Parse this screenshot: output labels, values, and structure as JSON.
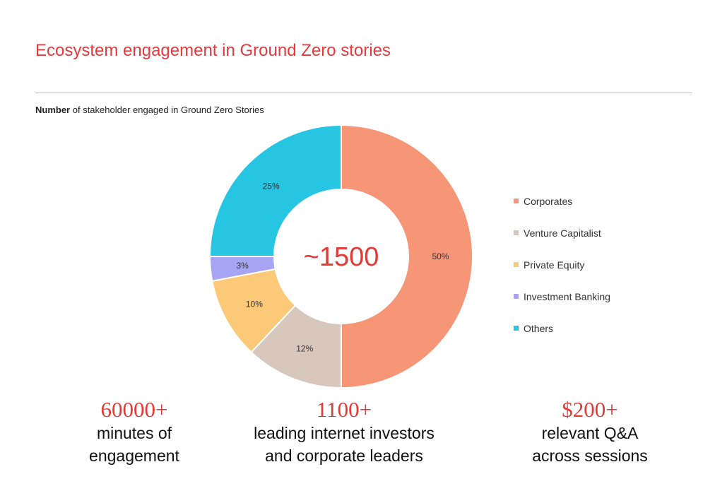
{
  "header": {
    "title": "Ecosystem engagement in Ground Zero stories",
    "subtitle_bold": "Number",
    "subtitle_rest": " of stakeholder engaged in Ground Zero Stories"
  },
  "chart_data": {
    "type": "pie",
    "title": "",
    "center_label": "~1500",
    "legend_position": "right",
    "slices": [
      {
        "name": "Corporates",
        "value": 50,
        "label": "50%",
        "color": "#f79677"
      },
      {
        "name": "Venture Capitalist",
        "value": 12,
        "label": "12%",
        "color": "#d8c7bd"
      },
      {
        "name": "Private Equity",
        "value": 10,
        "label": "10%",
        "color": "#fcc978"
      },
      {
        "name": "Investment Banking",
        "value": 3,
        "label": "3%",
        "color": "#a7a4f3"
      },
      {
        "name": "Others",
        "value": 25,
        "label": "25%",
        "color": "#26c6e2"
      }
    ]
  },
  "stats": [
    {
      "value": "60000+",
      "label": "minutes of\nengagement"
    },
    {
      "value": "1100+",
      "label": "leading internet investors\nand corporate leaders"
    },
    {
      "value": "$200+",
      "label": "relevant Q&A\nacross  sessions"
    }
  ]
}
